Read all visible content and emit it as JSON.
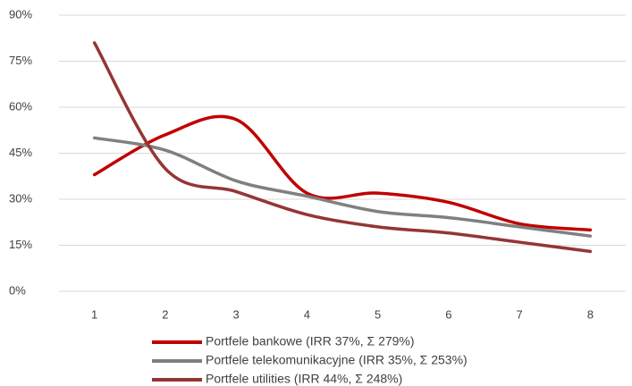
{
  "chart_data": {
    "type": "line",
    "categories": [
      "1",
      "2",
      "3",
      "4",
      "5",
      "6",
      "7",
      "8"
    ],
    "series": [
      {
        "name": "Portfele bankowe (IRR 37%, Σ 279%)",
        "color": "#c00000",
        "values": [
          38,
          51,
          56,
          32,
          32,
          29,
          22,
          20
        ]
      },
      {
        "name": "Portfele telekomunikacyjne (IRR 35%, Σ 253%)",
        "color": "#808080",
        "values": [
          50,
          46,
          36,
          31,
          26,
          24,
          21,
          18
        ]
      },
      {
        "name": "Portfele utilities (IRR 44%, Σ 248%)",
        "color": "#943634",
        "values": [
          81,
          40,
          32.5,
          25,
          21,
          19,
          16,
          13
        ]
      }
    ],
    "ylim": [
      0,
      90
    ],
    "yticks": [
      {
        "value": 0,
        "label": "0%"
      },
      {
        "value": 15,
        "label": "15%"
      },
      {
        "value": 30,
        "label": "30%"
      },
      {
        "value": 45,
        "label": "45%"
      },
      {
        "value": 60,
        "label": "60%"
      },
      {
        "value": 75,
        "label": "75%"
      },
      {
        "value": 90,
        "label": "90%"
      }
    ],
    "grid": true,
    "smooth": true,
    "legend": "bottom"
  }
}
